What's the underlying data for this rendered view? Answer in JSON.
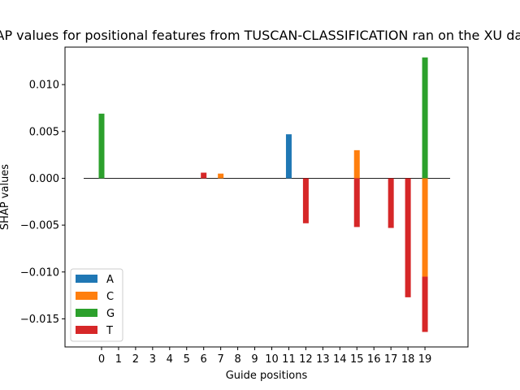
{
  "chart_data": {
    "type": "bar",
    "title": "SHAP values for positional features from TUSCAN-CLASSIFICATION ran on the XU dataset",
    "xlabel": "Guide positions",
    "ylabel": "SHAP values",
    "ylim": [
      -0.018,
      0.014
    ],
    "yticks": [
      -0.015,
      -0.01,
      -0.005,
      0.0,
      0.005,
      0.01
    ],
    "ytick_labels": [
      "−0.015",
      "−0.010",
      "−0.005",
      "0.000",
      "0.005",
      "0.010"
    ],
    "categories": [
      "0",
      "1",
      "2",
      "3",
      "4",
      "5",
      "6",
      "7",
      "8",
      "9",
      "10",
      "11",
      "12",
      "13",
      "14",
      "15",
      "16",
      "17",
      "18",
      "19"
    ],
    "series": [
      {
        "name": "A",
        "color": "#1f77b4",
        "values": [
          0,
          0,
          0,
          0,
          0,
          0,
          0,
          0,
          0,
          0,
          0,
          0.0047,
          0,
          0,
          0,
          0,
          0,
          0,
          0,
          0
        ]
      },
      {
        "name": "C",
        "color": "#ff7f0e",
        "values": [
          0,
          0,
          0,
          0,
          0,
          0,
          0,
          0.0005,
          0,
          0,
          0,
          0,
          0,
          0,
          0,
          0.003,
          0,
          0,
          0,
          -0.0105
        ]
      },
      {
        "name": "G",
        "color": "#2ca02c",
        "values": [
          0.0069,
          0,
          0,
          0,
          0,
          0,
          0,
          0,
          0,
          0,
          0,
          0,
          0,
          0,
          0,
          0,
          0,
          0,
          0,
          0.0129
        ]
      },
      {
        "name": "T",
        "color": "#d62728",
        "values": [
          0,
          0,
          0,
          0,
          0,
          0,
          0.0006,
          0,
          0,
          0,
          0,
          0,
          -0.0048,
          0,
          0,
          -0.0052,
          0,
          -0.0053,
          -0.0127,
          -0.0059
        ]
      }
    ],
    "legend_position": "lower-left",
    "grid": false
  }
}
